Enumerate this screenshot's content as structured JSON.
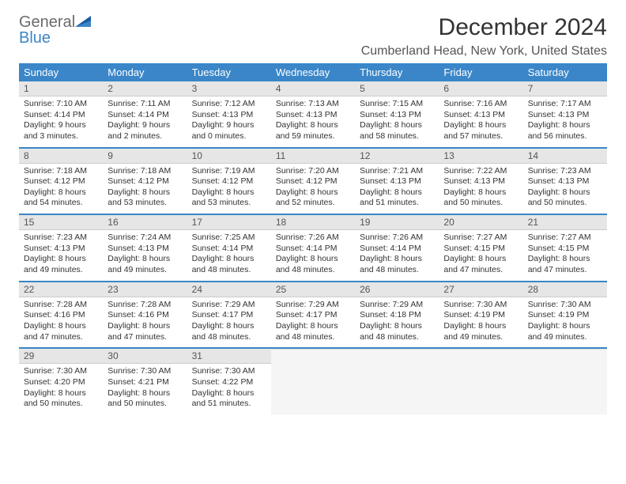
{
  "logo": {
    "word1": "General",
    "word2": "Blue"
  },
  "title": "December 2024",
  "location": "Cumberland Head, New York, United States",
  "colors": {
    "header_bg": "#3a86c8",
    "header_text": "#ffffff",
    "daynum_bg": "#e6e6e6",
    "row_divider": "#3a86c8",
    "text": "#333333",
    "empty_bg": "#f5f5f5"
  },
  "weekdays": [
    "Sunday",
    "Monday",
    "Tuesday",
    "Wednesday",
    "Thursday",
    "Friday",
    "Saturday"
  ],
  "weeks": [
    [
      {
        "n": "1",
        "sr": "7:10 AM",
        "ss": "4:14 PM",
        "dl": "9 hours and 3 minutes."
      },
      {
        "n": "2",
        "sr": "7:11 AM",
        "ss": "4:14 PM",
        "dl": "9 hours and 2 minutes."
      },
      {
        "n": "3",
        "sr": "7:12 AM",
        "ss": "4:13 PM",
        "dl": "9 hours and 0 minutes."
      },
      {
        "n": "4",
        "sr": "7:13 AM",
        "ss": "4:13 PM",
        "dl": "8 hours and 59 minutes."
      },
      {
        "n": "5",
        "sr": "7:15 AM",
        "ss": "4:13 PM",
        "dl": "8 hours and 58 minutes."
      },
      {
        "n": "6",
        "sr": "7:16 AM",
        "ss": "4:13 PM",
        "dl": "8 hours and 57 minutes."
      },
      {
        "n": "7",
        "sr": "7:17 AM",
        "ss": "4:13 PM",
        "dl": "8 hours and 56 minutes."
      }
    ],
    [
      {
        "n": "8",
        "sr": "7:18 AM",
        "ss": "4:12 PM",
        "dl": "8 hours and 54 minutes."
      },
      {
        "n": "9",
        "sr": "7:18 AM",
        "ss": "4:12 PM",
        "dl": "8 hours and 53 minutes."
      },
      {
        "n": "10",
        "sr": "7:19 AM",
        "ss": "4:12 PM",
        "dl": "8 hours and 53 minutes."
      },
      {
        "n": "11",
        "sr": "7:20 AM",
        "ss": "4:12 PM",
        "dl": "8 hours and 52 minutes."
      },
      {
        "n": "12",
        "sr": "7:21 AM",
        "ss": "4:13 PM",
        "dl": "8 hours and 51 minutes."
      },
      {
        "n": "13",
        "sr": "7:22 AM",
        "ss": "4:13 PM",
        "dl": "8 hours and 50 minutes."
      },
      {
        "n": "14",
        "sr": "7:23 AM",
        "ss": "4:13 PM",
        "dl": "8 hours and 50 minutes."
      }
    ],
    [
      {
        "n": "15",
        "sr": "7:23 AM",
        "ss": "4:13 PM",
        "dl": "8 hours and 49 minutes."
      },
      {
        "n": "16",
        "sr": "7:24 AM",
        "ss": "4:13 PM",
        "dl": "8 hours and 49 minutes."
      },
      {
        "n": "17",
        "sr": "7:25 AM",
        "ss": "4:14 PM",
        "dl": "8 hours and 48 minutes."
      },
      {
        "n": "18",
        "sr": "7:26 AM",
        "ss": "4:14 PM",
        "dl": "8 hours and 48 minutes."
      },
      {
        "n": "19",
        "sr": "7:26 AM",
        "ss": "4:14 PM",
        "dl": "8 hours and 48 minutes."
      },
      {
        "n": "20",
        "sr": "7:27 AM",
        "ss": "4:15 PM",
        "dl": "8 hours and 47 minutes."
      },
      {
        "n": "21",
        "sr": "7:27 AM",
        "ss": "4:15 PM",
        "dl": "8 hours and 47 minutes."
      }
    ],
    [
      {
        "n": "22",
        "sr": "7:28 AM",
        "ss": "4:16 PM",
        "dl": "8 hours and 47 minutes."
      },
      {
        "n": "23",
        "sr": "7:28 AM",
        "ss": "4:16 PM",
        "dl": "8 hours and 47 minutes."
      },
      {
        "n": "24",
        "sr": "7:29 AM",
        "ss": "4:17 PM",
        "dl": "8 hours and 48 minutes."
      },
      {
        "n": "25",
        "sr": "7:29 AM",
        "ss": "4:17 PM",
        "dl": "8 hours and 48 minutes."
      },
      {
        "n": "26",
        "sr": "7:29 AM",
        "ss": "4:18 PM",
        "dl": "8 hours and 48 minutes."
      },
      {
        "n": "27",
        "sr": "7:30 AM",
        "ss": "4:19 PM",
        "dl": "8 hours and 49 minutes."
      },
      {
        "n": "28",
        "sr": "7:30 AM",
        "ss": "4:19 PM",
        "dl": "8 hours and 49 minutes."
      }
    ],
    [
      {
        "n": "29",
        "sr": "7:30 AM",
        "ss": "4:20 PM",
        "dl": "8 hours and 50 minutes."
      },
      {
        "n": "30",
        "sr": "7:30 AM",
        "ss": "4:21 PM",
        "dl": "8 hours and 50 minutes."
      },
      {
        "n": "31",
        "sr": "7:30 AM",
        "ss": "4:22 PM",
        "dl": "8 hours and 51 minutes."
      },
      null,
      null,
      null,
      null
    ]
  ],
  "labels": {
    "sunrise_prefix": "Sunrise: ",
    "sunset_prefix": "Sunset: ",
    "daylight_prefix": "Daylight: "
  }
}
